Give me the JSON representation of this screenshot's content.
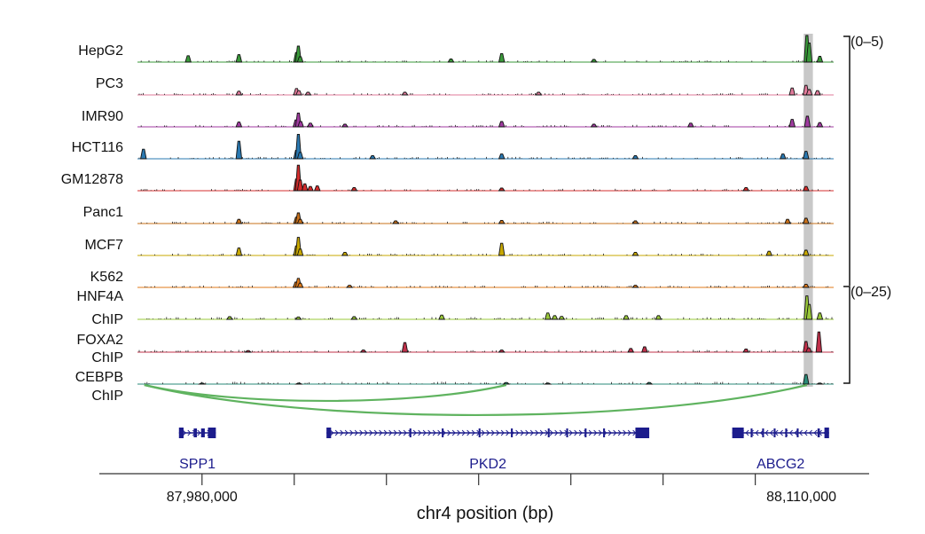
{
  "chart_data": {
    "type": "area",
    "title": "",
    "xlabel": "chr4 position (bp)",
    "ylabel": "",
    "xlim": [
      87966000,
      88117000
    ],
    "x_tick_labels": [
      {
        "value": 87980000,
        "label": "87,980,000"
      },
      {
        "value": 88110000,
        "label": "88,110,000"
      }
    ],
    "x_minor_ticks": [
      87980000,
      88000000,
      88020000,
      88040000,
      88060000,
      88080000,
      88100000
    ],
    "highlight_region": [
      88110500,
      88112500
    ],
    "scale_groups": [
      {
        "label": "(0–5)",
        "tracks": [
          "HepG2",
          "PC3",
          "IMR90",
          "HCT116",
          "GM12878",
          "Panc1",
          "MCF7",
          "K562"
        ]
      },
      {
        "label": "(0–25)",
        "tracks": [
          "HNF4A ChIP",
          "FOXA2 ChIP",
          "CEBPB ChIP"
        ]
      }
    ],
    "tracks": [
      {
        "name": "HepG2",
        "label_lines": [
          "HepG2"
        ],
        "color": "#3a9a3a",
        "ymax": 5,
        "peaks": [
          [
            87977000,
            1.2
          ],
          [
            87988000,
            1.4
          ],
          [
            88000500,
            1.8
          ],
          [
            88000900,
            3.0
          ],
          [
            88001300,
            1.0
          ],
          [
            88034000,
            0.6
          ],
          [
            88045000,
            1.6
          ],
          [
            88065000,
            0.5
          ],
          [
            88111200,
            5.0
          ],
          [
            88111700,
            3.6
          ],
          [
            88114000,
            1.1
          ]
        ]
      },
      {
        "name": "PC3",
        "label_lines": [
          "PC3"
        ],
        "color": "#e07a9a",
        "ymax": 5,
        "peaks": [
          [
            87988000,
            0.7
          ],
          [
            88000500,
            1.2
          ],
          [
            88001000,
            0.8
          ],
          [
            88003000,
            0.5
          ],
          [
            88024000,
            0.5
          ],
          [
            88053000,
            0.5
          ],
          [
            88108000,
            1.3
          ],
          [
            88111000,
            1.8
          ],
          [
            88111700,
            1.0
          ],
          [
            88113500,
            0.8
          ]
        ]
      },
      {
        "name": "IMR90",
        "label_lines": [
          "IMR90"
        ],
        "color": "#a03aa0",
        "ymax": 5,
        "peaks": [
          [
            87988000,
            0.9
          ],
          [
            88000400,
            1.3
          ],
          [
            88000900,
            2.6
          ],
          [
            88001400,
            1.0
          ],
          [
            88003500,
            0.7
          ],
          [
            88011000,
            0.5
          ],
          [
            88045000,
            1.0
          ],
          [
            88065000,
            0.5
          ],
          [
            88086000,
            0.7
          ],
          [
            88108000,
            1.4
          ],
          [
            88111300,
            2.0
          ],
          [
            88114000,
            0.8
          ]
        ]
      },
      {
        "name": "HCT116",
        "label_lines": [
          "HCT116"
        ],
        "color": "#2a78b0",
        "ymax": 5,
        "peaks": [
          [
            87967300,
            1.8
          ],
          [
            87988000,
            3.3
          ],
          [
            88000500,
            1.6
          ],
          [
            88000900,
            4.6
          ],
          [
            88001300,
            1.2
          ],
          [
            88017000,
            0.6
          ],
          [
            88045000,
            0.9
          ],
          [
            88074000,
            0.6
          ],
          [
            88106000,
            0.9
          ],
          [
            88111000,
            1.4
          ]
        ]
      },
      {
        "name": "GM12878",
        "label_lines": [
          "GM12878"
        ],
        "color": "#d42c2c",
        "ymax": 5,
        "peaks": [
          [
            88000500,
            2.2
          ],
          [
            88000900,
            4.8
          ],
          [
            88001300,
            2.0
          ],
          [
            88002300,
            1.3
          ],
          [
            88003500,
            0.8
          ],
          [
            88005000,
            0.9
          ],
          [
            88013000,
            0.6
          ],
          [
            88045000,
            0.5
          ],
          [
            88098000,
            0.6
          ],
          [
            88111000,
            0.8
          ]
        ]
      },
      {
        "name": "Panc1",
        "label_lines": [
          "Panc1"
        ],
        "color": "#c8701a",
        "ymax": 5,
        "peaks": [
          [
            87988000,
            0.8
          ],
          [
            88000500,
            1.2
          ],
          [
            88000900,
            2.0
          ],
          [
            88001300,
            0.8
          ],
          [
            88022000,
            0.5
          ],
          [
            88045000,
            0.6
          ],
          [
            88074000,
            0.5
          ],
          [
            88107000,
            0.8
          ],
          [
            88111000,
            1.0
          ]
        ]
      },
      {
        "name": "MCF7",
        "label_lines": [
          "MCF7"
        ],
        "color": "#c8a800",
        "ymax": 5,
        "peaks": [
          [
            87988000,
            1.4
          ],
          [
            88000500,
            1.8
          ],
          [
            88000900,
            3.4
          ],
          [
            88001300,
            1.2
          ],
          [
            88011000,
            0.6
          ],
          [
            88045000,
            2.3
          ],
          [
            88074000,
            0.6
          ],
          [
            88103000,
            0.8
          ],
          [
            88111000,
            1.0
          ]
        ]
      },
      {
        "name": "K562",
        "label_lines": [
          "K562"
        ],
        "color": "#e07a1a",
        "ymax": 5,
        "peaks": [
          [
            88000400,
            1.0
          ],
          [
            88000900,
            1.7
          ],
          [
            88001300,
            0.8
          ],
          [
            88012000,
            0.4
          ],
          [
            88074000,
            0.4
          ],
          [
            88111000,
            0.6
          ]
        ]
      },
      {
        "name": "HNF4A ChIP",
        "label_lines": [
          "HNF4A",
          "ChIP"
        ],
        "color": "#9ac83a",
        "ymax": 25,
        "peaks": [
          [
            87986000,
            2.5
          ],
          [
            88000900,
            2.2
          ],
          [
            88013000,
            2.5
          ],
          [
            88032000,
            4.0
          ],
          [
            88055000,
            6.0
          ],
          [
            88056500,
            3.5
          ],
          [
            88058000,
            2.8
          ],
          [
            88072000,
            3.5
          ],
          [
            88079000,
            3.5
          ],
          [
            88111200,
            22.0
          ],
          [
            88111700,
            14.0
          ],
          [
            88114000,
            6.0
          ]
        ]
      },
      {
        "name": "FOXA2 ChIP",
        "label_lines": [
          "FOXA2",
          "ChIP"
        ],
        "color": "#c0304a",
        "ymax": 25,
        "peaks": [
          [
            87990000,
            1.5
          ],
          [
            88015000,
            2.0
          ],
          [
            88024000,
            9.0
          ],
          [
            88045000,
            2.0
          ],
          [
            88073000,
            3.5
          ],
          [
            88076000,
            5.0
          ],
          [
            88098000,
            3.0
          ],
          [
            88111000,
            10.0
          ],
          [
            88111600,
            4.0
          ],
          [
            88113800,
            19.0
          ]
        ]
      },
      {
        "name": "CEBPB ChIP",
        "label_lines": [
          "CEBPB",
          "ChIP"
        ],
        "color": "#2a8a78",
        "ymax": 25,
        "peaks": [
          [
            87980000,
            1.0
          ],
          [
            88001000,
            1.0
          ],
          [
            88046000,
            1.5
          ],
          [
            88055000,
            1.0
          ],
          [
            88077000,
            1.5
          ],
          [
            88111000,
            9.0
          ],
          [
            88114000,
            1.0
          ]
        ]
      }
    ],
    "loops": [
      {
        "from": 87967500,
        "to": 88046000,
        "color": "#5fb35f"
      },
      {
        "from": 87967500,
        "to": 88111200,
        "color": "#5fb35f"
      }
    ],
    "genes": [
      {
        "name": "SPP1",
        "start": 87975000,
        "end": 87983000,
        "strand": "+",
        "color": "#1c1c8c",
        "exons": [
          [
            87975000,
            87976000
          ],
          [
            87978200,
            87978900
          ],
          [
            87979800,
            87980600
          ],
          [
            87981300,
            87983000
          ]
        ]
      },
      {
        "name": "PKD2",
        "start": 88007000,
        "end": 88077000,
        "strand": "+",
        "color": "#1c1c8c",
        "exons": [
          [
            88007000,
            88008000
          ],
          [
            88025000,
            88025400
          ],
          [
            88032000,
            88032400
          ],
          [
            88040000,
            88040400
          ],
          [
            88047000,
            88047400
          ],
          [
            88055000,
            88055400
          ],
          [
            88059000,
            88059400
          ],
          [
            88063000,
            88063400
          ],
          [
            88067000,
            88067400
          ],
          [
            88074000,
            88077000
          ]
        ]
      },
      {
        "name": "ABCG2",
        "start": 88095000,
        "end": 88116000,
        "strand": "-",
        "color": "#1c1c8c",
        "exons": [
          [
            88095000,
            88097500
          ],
          [
            88099000,
            88099400
          ],
          [
            88101500,
            88101900
          ],
          [
            88104000,
            88104400
          ],
          [
            88106500,
            88106900
          ],
          [
            88109000,
            88109400
          ],
          [
            88113500,
            88114000
          ],
          [
            88115000,
            88116000
          ]
        ]
      }
    ]
  }
}
